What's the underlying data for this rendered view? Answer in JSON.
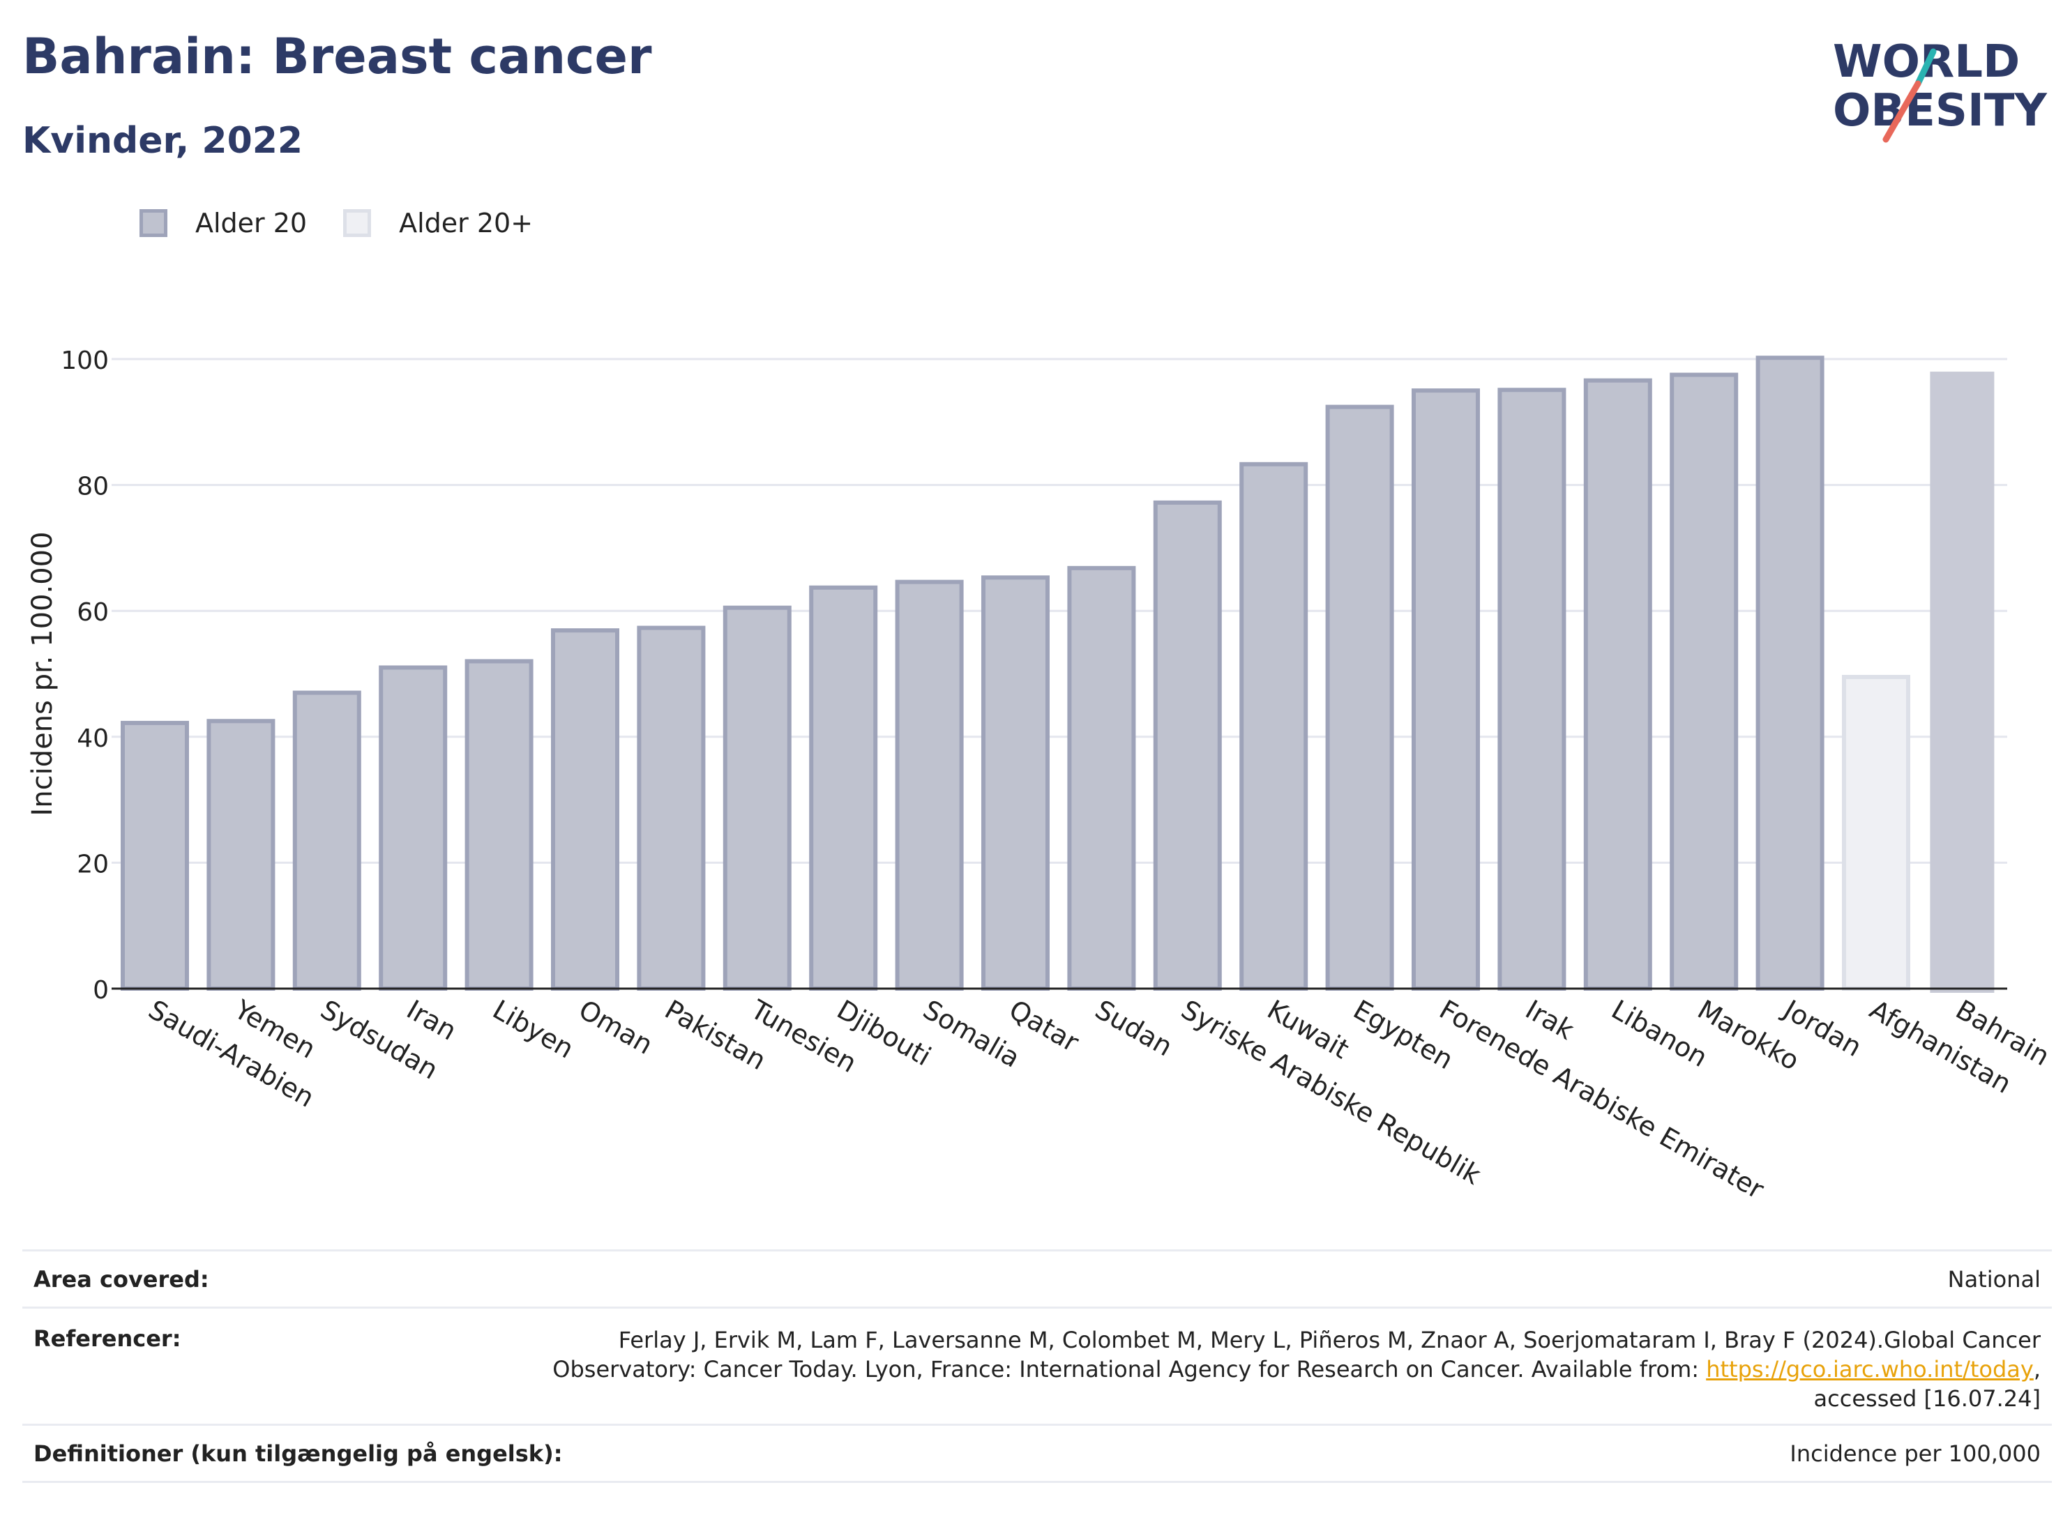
{
  "header": {
    "title": "Bahrain: Breast cancer",
    "subtitle": "Kvinder, 2022"
  },
  "logo": {
    "line1": "WORLD",
    "line2": "OBESITY",
    "icon": "world-obesity-logo"
  },
  "legend": [
    {
      "label": "Alder 20",
      "color": "#2d3a66"
    },
    {
      "label": "Alder 20+",
      "color": "#cfd3df"
    }
  ],
  "chart_data": {
    "type": "bar",
    "ylabel": "Incidens pr. 100.000",
    "xlabel": "",
    "ylim": [
      0,
      100
    ],
    "yticks": [
      0,
      20,
      40,
      60,
      80,
      100
    ],
    "grid": true,
    "legend_position": "top-left",
    "categories": [
      "Saudi-Arabien",
      "Yemen",
      "Sydsudan",
      "Iran",
      "Libyen",
      "Oman",
      "Pakistan",
      "Tunesien",
      "Djibouti",
      "Somalia",
      "Qatar",
      "Sudan",
      "Syriske Arabiske Republik",
      "Kuwait",
      "Egypten",
      "Forenede Arabiske Emirater",
      "Irak",
      "Libanon",
      "Marokko",
      "Jordan",
      "Afghanistan",
      "Bahrain"
    ],
    "values": [
      42.2,
      42.5,
      47,
      51,
      52,
      56.9,
      57.3,
      60.5,
      63.7,
      64.6,
      65.3,
      66.8,
      77.2,
      83.3,
      92.4,
      95,
      95.1,
      96.6,
      97.5,
      100.2,
      49.5,
      98
    ],
    "series_of_bar": [
      "Alder 20",
      "Alder 20",
      "Alder 20",
      "Alder 20",
      "Alder 20",
      "Alder 20",
      "Alder 20",
      "Alder 20",
      "Alder 20",
      "Alder 20",
      "Alder 20",
      "Alder 20",
      "Alder 20",
      "Alder 20",
      "Alder 20",
      "Alder 20",
      "Alder 20",
      "Alder 20",
      "Alder 20",
      "Alder 20",
      "Alder 20+",
      "highlight"
    ],
    "colors": {
      "Alder 20_fill": "#bfc2cf",
      "Alder 20_stroke": "#9ea3b9",
      "Alder 20+_fill": "#eff0f4",
      "Alder 20+_stroke": "#dde0e8",
      "highlight_fill": "#c8cad6"
    }
  },
  "meta": {
    "area_key": "Area covered:",
    "area_val": "National",
    "ref_key": "Referencer:",
    "ref_line1": "Ferlay J, Ervik M, Lam F, Laversanne M, Colombet M, Mery L, Piñeros M, Znaor A, Soerjomataram I, Bray F (2024).Global Cancer",
    "ref_line2_pre": "Observatory: Cancer Today. Lyon, France: International Agency for Research on Cancer. Available from: ",
    "ref_link": "https://gco.iarc.who.int/today",
    "ref_line2_post": ",",
    "ref_line3": "accessed [16.07.24]",
    "def_key": "Definitioner (kun tilgængelig på engelsk):",
    "def_val": "Incidence per 100,000"
  }
}
